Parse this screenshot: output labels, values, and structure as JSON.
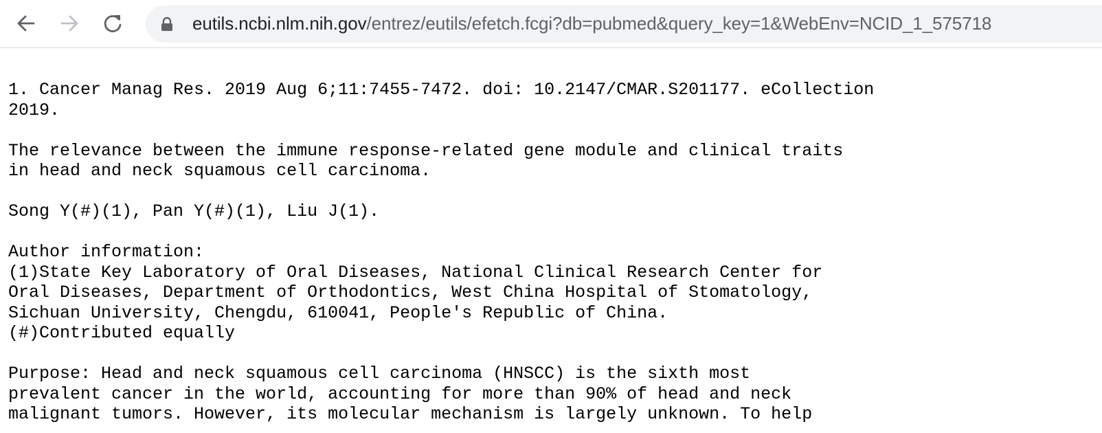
{
  "browser": {
    "url_host": "eutils.ncbi.nlm.nih.gov",
    "url_path": "/entrez/eutils/efetch.fcgi?db=pubmed&query_key=1&WebEnv=NCID_1_575718"
  },
  "record": {
    "citation_line1": "1. Cancer Manag Res. 2019 Aug 6;11:7455-7472. doi: 10.2147/CMAR.S201177. eCollection",
    "citation_line2": "2019.",
    "title_line1": "The relevance between the immune response-related gene module and clinical traits",
    "title_line2": "in head and neck squamous cell carcinoma.",
    "authors": "Song Y(#)(1), Pan Y(#)(1), Liu J(1).",
    "author_info_heading": "Author information:",
    "affiliation_line1": "(1)State Key Laboratory of Oral Diseases, National Clinical Research Center for",
    "affiliation_line2": "Oral Diseases, Department of Orthodontics, West China Hospital of Stomatology,",
    "affiliation_line3": "Sichuan University, Chengdu, 610041, People's Republic of China.",
    "contributed_note": "(#)Contributed equally",
    "abstract_line1": "Purpose: Head and neck squamous cell carcinoma (HNSCC) is the sixth most",
    "abstract_line2": "prevalent cancer in the world, accounting for more than 90% of head and neck",
    "abstract_line3": "malignant tumors. However, its molecular mechanism is largely unknown. To help"
  }
}
